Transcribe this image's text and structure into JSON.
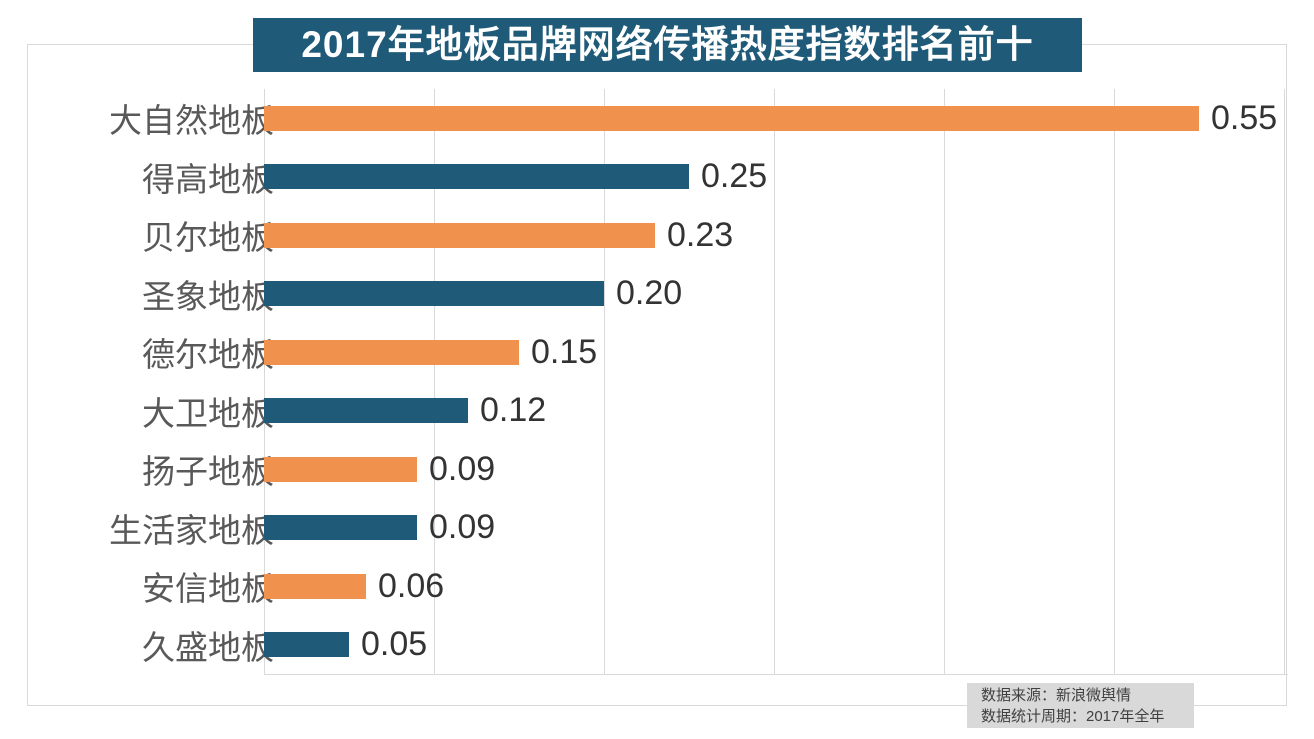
{
  "title": {
    "text": "2017年地板品牌网络传播热度指数排名前十"
  },
  "source_note": {
    "line1": "数据来源：新浪微舆情",
    "line2": "数据统计周期：2017年全年"
  },
  "colors": {
    "bar_orange": "#F0924E",
    "bar_blue": "#1F5B78",
    "banner_bg": "#1F5B78",
    "banner_text": "#FFFFFF",
    "gridline": "#D9D9D9",
    "category_label": "#595959",
    "value_label": "#333333",
    "note_bg": "#D9D9D9",
    "note_text": "#404040"
  },
  "chart_data": {
    "type": "bar",
    "orientation": "horizontal",
    "title": "2017年地板品牌网络传播热度指数排名前十",
    "categories": [
      "大自然地板",
      "得高地板",
      "贝尔地板",
      "圣象地板",
      "德尔地板",
      "大卫地板",
      "扬子地板",
      "生活家地板",
      "安信地板",
      "久盛地板"
    ],
    "values": [
      0.55,
      0.25,
      0.23,
      0.2,
      0.15,
      0.12,
      0.09,
      0.09,
      0.06,
      0.05
    ],
    "value_labels": [
      "0.55",
      "0.25",
      "0.23",
      "0.20",
      "0.15",
      "0.12",
      "0.09",
      "0.09",
      "0.06",
      "0.05"
    ],
    "bar_colors_alternate": [
      "#F0924E",
      "#1F5B78"
    ],
    "xlabel": "",
    "ylabel": "",
    "xlim": [
      0,
      0.6
    ],
    "grid_interval": 0.1,
    "grid": "vertical-lines-on",
    "legend": "none",
    "data_labels": "outside-end",
    "source": "新浪微舆情",
    "period": "2017年全年"
  }
}
